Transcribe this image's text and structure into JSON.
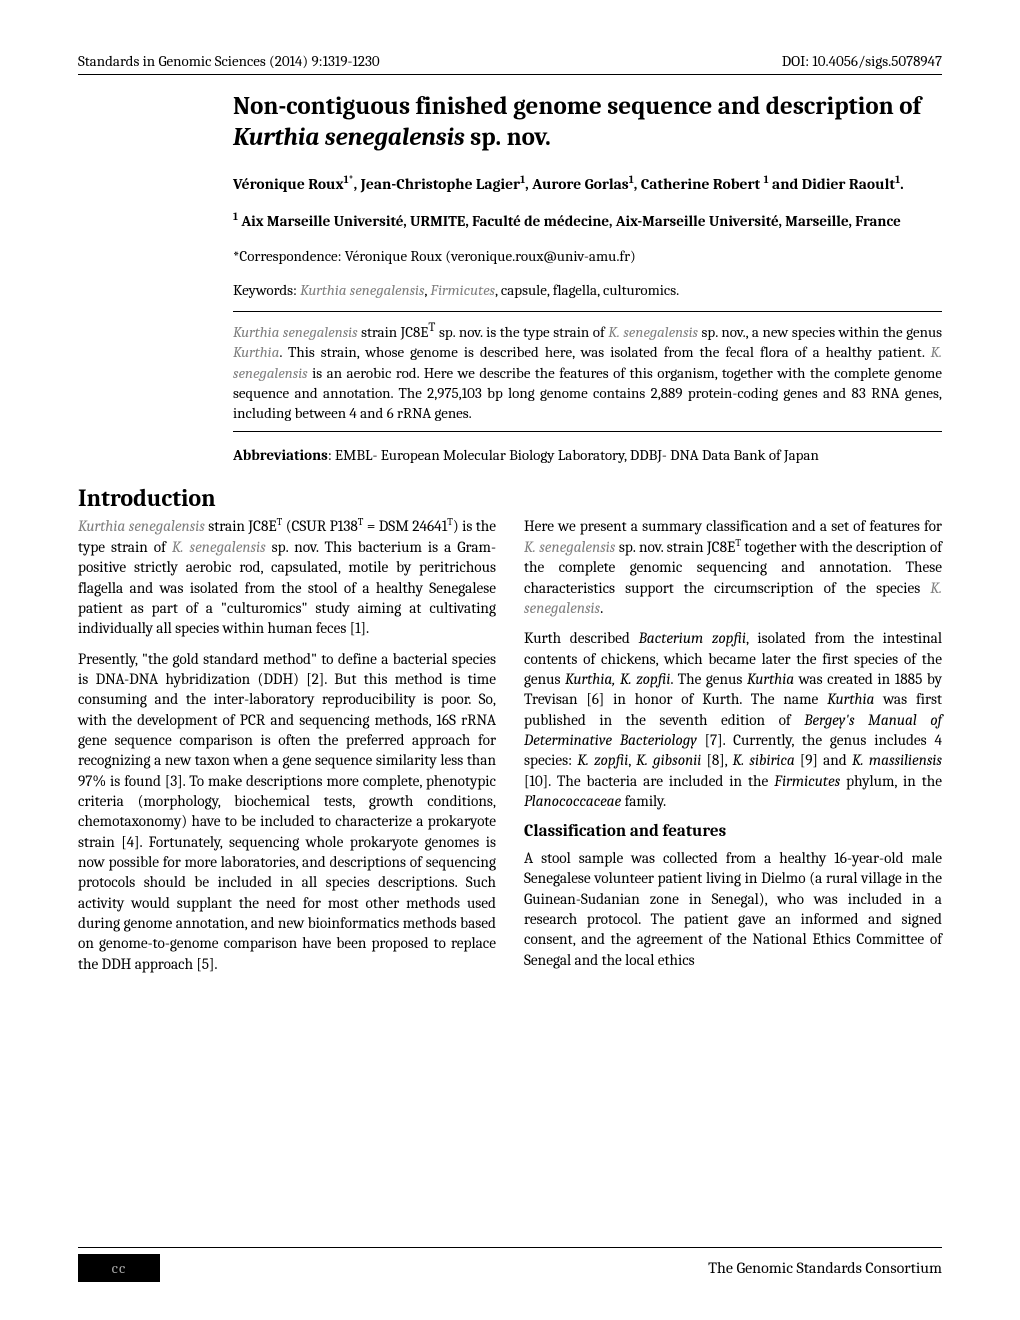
{
  "header": {
    "journal": "Standards in Genomic Sciences (2014) 9:1319-1230",
    "doi": "DOI: 10.4056/sigs.5078947"
  },
  "title": {
    "part1": "Non-contiguous finished genome sequence and description of ",
    "italic": "Kurthia senegalensis",
    "part2": " sp. nov."
  },
  "authors": "Véronique Roux1*, Jean-Christophe Lagier1, Aurore Gorlas1, Catherine Robert 1 and Didier Raoult1.",
  "affiliation": "1 Aix Marseille Université, URMITE, Faculté de médecine, Aix-Marseille Université, Marseille, France",
  "correspondence": "*Correspondence: Véronique Roux (veronique.roux@univ-amu.fr)",
  "keywords": {
    "label": "Keywords: ",
    "italic1": "Kurthia senegalensis",
    "sep1": ", ",
    "italic2": "Firmicutes",
    "rest": ", capsule, flagella, culturomics."
  },
  "abstract": {
    "p1a": "Kurthia senegalensis",
    "p1b": " strain JC8E",
    "p1c": " sp. nov. is the type strain of ",
    "p1d": "K. senegalensis",
    "p1e": " sp. nov., a new species within the genus ",
    "p1f": "Kurthia",
    "p1g": ". This strain, whose genome is described here, was isolated from the fecal flora of a healthy patient. ",
    "p1h": "K. senegalensis",
    "p1i": " is an aerobic rod. Here we describe the features of this organism, together with the complete genome sequence and annotation. The 2,975,103 bp long genome contains 2,889 protein-coding genes and 83 RNA genes, including between 4 and 6 rRNA genes."
  },
  "abbreviations": {
    "label": "Abbreviations",
    "text": ": EMBL- European Molecular Biology Laboratory, DDBJ- DNA Data Bank of Japan"
  },
  "intro_heading": "Introduction",
  "body": {
    "p1a": "Kurthia senegalensis",
    "p1b": " strain JC8E",
    "p1c": " (CSUR P138",
    "p1d": " = DSM 24641",
    "p1e": ") is the type strain of ",
    "p1f": "K. senegalensis",
    "p1g": " sp. nov. This bacterium is a Gram-positive strictly aerobic rod, capsulated, motile by peritrichous flagella and was isolated from the stool of a healthy Senegalese patient as part of a \"culturomics\" study aiming at cultivating individually all species within human feces [1].",
    "p2": "Presently, \"the gold standard method\" to define a bacterial species is DNA-DNA hybridization (DDH) [2]. But this method is time consuming and the inter-laboratory reproducibility is poor. So, with the development of PCR and sequencing methods, 16S rRNA gene sequence comparison is often the preferred approach for recognizing a new taxon when a gene sequence similarity less than 97% is found [3]. To make descriptions more complete, phenotypic criteria (morphology, biochemical tests, growth conditions, chemotaxonomy) have to be included to characterize a prokaryote strain [4]. Fortunately, sequencing whole prokaryote genomes is now possible for more laboratories, and descriptions of sequencing protocols should be included in all species descriptions. Such activity would supplant the need for most other methods used during genome annotation, and new bioinformatics methods based on genome-to-",
    "p2end": "genome comparison have been proposed to replace the DDH approach [5].",
    "p3a": "Here we present a summary classification and a set of features for ",
    "p3b": "K. senegalensis",
    "p3c": " sp. nov. strain JC8E",
    "p3d": " together with the description of the complete genomic sequencing and annotation. These characteristics support the circumscription of the species ",
    "p3e": "K. senegalensis",
    "p3f": ".",
    "p4a": "Kurth described ",
    "p4b": "Bacterium zopfii",
    "p4c": ", isolated from the intestinal contents of chickens, which became later the first species of the genus ",
    "p4d": "Kurthia, K. zopfii",
    "p4e": ". The genus ",
    "p4f": "Kurthia",
    "p4g": " was created in 1885 by Trevisan [6] in honor of Kurth. The name ",
    "p4h": "Kurthia",
    "p4i": " was first published in the seventh edition of ",
    "p4j": "Bergey's Manual of Determinative Bacteriology",
    "p4k": " [7]. Currently, the genus includes 4 species: ",
    "p4l": "K. zopfii",
    "p4m": ", ",
    "p4n": "K. gibsonii",
    "p4o": " [8], ",
    "p4p": "K. sibirica",
    "p4q": " [9] and ",
    "p4r": "K. massiliensis",
    "p4s": " [10]. The bacteria are included in the ",
    "p4t": "Firmicutes",
    "p4u": " phylum, in the ",
    "p4v": "Planococcaceae",
    "p4w": " family."
  },
  "subsection_heading": "Classification and features",
  "p5": "A stool sample was collected from a healthy 16-year-old male Senegalese volunteer patient living in Dielmo (a rural village in the Guinean-Sudanian zone in Senegal), who was included in a research protocol. The patient gave an informed and signed consent, and the agreement of the National Ethics Committee of Senegal and the local ethics",
  "footer": {
    "cc": "cc",
    "text": "The Genomic Standards Consortium"
  },
  "colors": {
    "text": "#000000",
    "italic_gray": "#808080",
    "background": "#ffffff"
  },
  "typography": {
    "body_fontsize": 15.3,
    "title_fontsize": 25,
    "heading_fontsize": 24,
    "subheading_fontsize": 17,
    "font_family": "Cambria, Georgia, serif"
  }
}
